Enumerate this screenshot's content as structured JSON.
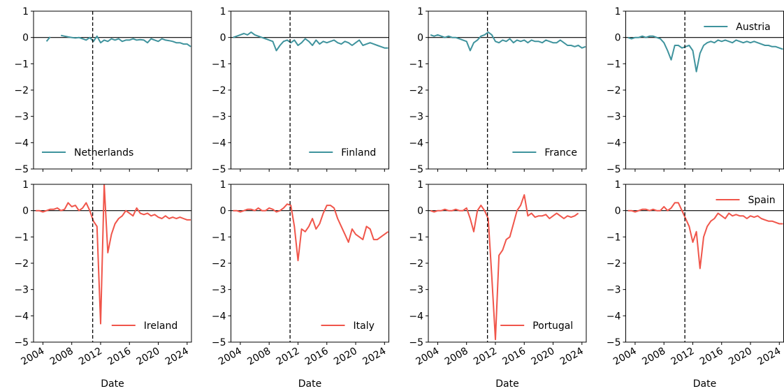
{
  "chart_data": [
    {
      "type": "line",
      "x": [
        2003,
        2003.5,
        2004,
        2004.5,
        2005,
        2005.5,
        2006,
        2006.5,
        2007,
        2007.5,
        2008,
        2008.5,
        2009,
        2009.5,
        2010,
        2010.5,
        2011,
        2011.5,
        2012,
        2012.5,
        2013,
        2013.5,
        2014,
        2014.5,
        2015,
        2015.5,
        2016,
        2016.5,
        2017,
        2017.5,
        2018,
        2018.5,
        2019,
        2019.5,
        2020,
        2020.5,
        2021,
        2021.5,
        2022,
        2022.5,
        2023,
        2023.5,
        2024,
        2024.5
      ],
      "series": [
        {
          "name": "Netherlands",
          "color": "#3f939d",
          "values": [
            null,
            null,
            null,
            -0.15,
            0.02,
            null,
            null,
            0.08,
            0.05,
            0.02,
            0.0,
            -0.02,
            0.0,
            -0.05,
            -0.1,
            0.0,
            -0.15,
            0.05,
            -0.2,
            -0.1,
            -0.15,
            -0.05,
            -0.1,
            -0.05,
            -0.15,
            -0.1,
            -0.1,
            -0.05,
            -0.1,
            -0.08,
            -0.1,
            -0.2,
            -0.05,
            -0.1,
            -0.15,
            -0.05,
            -0.1,
            -0.12,
            -0.15,
            -0.2,
            -0.2,
            -0.25,
            -0.25,
            -0.35
          ]
        }
      ],
      "xlim": [
        2002.7,
        2024.6
      ],
      "xticks": [
        2004,
        2008,
        2012,
        2016,
        2020,
        2024
      ],
      "ylim": [
        -5,
        1
      ],
      "yticks": [
        {
          "value": -5,
          "label": "−5"
        },
        {
          "value": -4,
          "label": "−4"
        },
        {
          "value": -3,
          "label": "−3"
        },
        {
          "value": -2,
          "label": "−2"
        },
        {
          "value": -1,
          "label": "−1"
        },
        0,
        1
      ],
      "hline": 0,
      "vline": 2010.9,
      "legend": "lower left"
    },
    {
      "type": "line",
      "x": [
        2003,
        2003.5,
        2004,
        2004.5,
        2005,
        2005.5,
        2006,
        2006.5,
        2007,
        2007.5,
        2008,
        2008.5,
        2009,
        2009.5,
        2010,
        2010.5,
        2011,
        2011.5,
        2012,
        2012.5,
        2013,
        2013.5,
        2014,
        2014.5,
        2015,
        2015.5,
        2016,
        2016.5,
        2017,
        2017.5,
        2018,
        2018.5,
        2019,
        2019.5,
        2020,
        2020.5,
        2021,
        2021.5,
        2022,
        2022.5,
        2023,
        2023.5,
        2024,
        2024.5
      ],
      "series": [
        {
          "name": "Finland",
          "color": "#3f939d",
          "values": [
            0.0,
            0.05,
            0.1,
            0.15,
            0.1,
            0.2,
            0.1,
            0.05,
            0.0,
            -0.05,
            -0.1,
            -0.15,
            -0.5,
            -0.3,
            -0.15,
            -0.1,
            -0.2,
            -0.1,
            -0.3,
            -0.2,
            -0.05,
            -0.15,
            -0.3,
            -0.1,
            -0.25,
            -0.15,
            -0.2,
            -0.15,
            -0.1,
            -0.2,
            -0.25,
            -0.15,
            -0.2,
            -0.3,
            -0.2,
            -0.1,
            -0.3,
            -0.25,
            -0.2,
            -0.25,
            -0.3,
            -0.35,
            -0.4,
            -0.4
          ]
        }
      ],
      "xlim": [
        2002.7,
        2024.6
      ],
      "xticks": [
        2004,
        2008,
        2012,
        2016,
        2020,
        2024
      ],
      "ylim": [
        -5,
        1
      ],
      "yticks": [
        {
          "value": -5,
          "label": "−5"
        },
        {
          "value": -4,
          "label": "−4"
        },
        {
          "value": -3,
          "label": "−3"
        },
        {
          "value": -2,
          "label": "−2"
        },
        {
          "value": -1,
          "label": "−1"
        },
        0,
        1
      ],
      "hline": 0,
      "vline": 2010.9,
      "legend": "lower right"
    },
    {
      "type": "line",
      "x": [
        2003,
        2003.5,
        2004,
        2004.5,
        2005,
        2005.5,
        2006,
        2006.5,
        2007,
        2007.5,
        2008,
        2008.5,
        2009,
        2009.5,
        2010,
        2010.5,
        2011,
        2011.5,
        2012,
        2012.5,
        2013,
        2013.5,
        2014,
        2014.5,
        2015,
        2015.5,
        2016,
        2016.5,
        2017,
        2017.5,
        2018,
        2018.5,
        2019,
        2019.5,
        2020,
        2020.5,
        2021,
        2021.5,
        2022,
        2022.5,
        2023,
        2023.5,
        2024,
        2024.5
      ],
      "series": [
        {
          "name": "France",
          "color": "#3f939d",
          "values": [
            0.1,
            0.05,
            0.1,
            0.05,
            0.0,
            0.05,
            0.0,
            0.0,
            -0.05,
            -0.1,
            -0.15,
            -0.5,
            -0.2,
            -0.1,
            0.05,
            0.1,
            0.2,
            0.1,
            -0.15,
            -0.2,
            -0.1,
            -0.15,
            -0.05,
            -0.2,
            -0.1,
            -0.15,
            -0.1,
            -0.2,
            -0.1,
            -0.15,
            -0.15,
            -0.2,
            -0.1,
            -0.15,
            -0.2,
            -0.2,
            -0.1,
            -0.2,
            -0.3,
            -0.3,
            -0.35,
            -0.3,
            -0.4,
            -0.35
          ]
        }
      ],
      "xlim": [
        2002.7,
        2024.6
      ],
      "xticks": [
        2004,
        2008,
        2012,
        2016,
        2020,
        2024
      ],
      "ylim": [
        -5,
        1
      ],
      "yticks": [
        {
          "value": -5,
          "label": "−5"
        },
        {
          "value": -4,
          "label": "−4"
        },
        {
          "value": -3,
          "label": "−3"
        },
        {
          "value": -2,
          "label": "−2"
        },
        {
          "value": -1,
          "label": "−1"
        },
        0,
        1
      ],
      "hline": 0,
      "vline": 2010.9,
      "legend": "lower right"
    },
    {
      "type": "line",
      "x": [
        2003,
        2003.5,
        2004,
        2004.5,
        2005,
        2005.5,
        2006,
        2006.5,
        2007,
        2007.5,
        2008,
        2008.5,
        2009,
        2009.5,
        2010,
        2010.5,
        2011,
        2011.5,
        2012,
        2012.5,
        2013,
        2013.5,
        2014,
        2014.5,
        2015,
        2015.5,
        2016,
        2016.5,
        2017,
        2017.5,
        2018,
        2018.5,
        2019,
        2019.5,
        2020,
        2020.5,
        2021,
        2021.5,
        2022,
        2022.5,
        2023,
        2023.5,
        2024,
        2024.5
      ],
      "series": [
        {
          "name": "Austria",
          "color": "#3f939d",
          "values": [
            0.0,
            -0.05,
            0.0,
            0.0,
            0.05,
            0.0,
            0.05,
            0.05,
            0.0,
            -0.05,
            -0.2,
            -0.5,
            -0.85,
            -0.3,
            -0.3,
            -0.4,
            -0.35,
            -0.3,
            -0.5,
            -1.3,
            -0.6,
            -0.3,
            -0.2,
            -0.15,
            -0.2,
            -0.1,
            -0.15,
            -0.1,
            -0.15,
            -0.2,
            -0.1,
            -0.15,
            -0.2,
            -0.15,
            -0.2,
            -0.15,
            -0.2,
            -0.25,
            -0.3,
            -0.3,
            -0.35,
            -0.35,
            -0.4,
            -0.45
          ]
        }
      ],
      "xlim": [
        2002.7,
        2024.6
      ],
      "xticks": [
        2004,
        2008,
        2012,
        2016,
        2020,
        2024
      ],
      "ylim": [
        -5,
        1
      ],
      "yticks": [
        {
          "value": -5,
          "label": "−5"
        },
        {
          "value": -4,
          "label": "−4"
        },
        {
          "value": -3,
          "label": "−3"
        },
        {
          "value": -2,
          "label": "−2"
        },
        {
          "value": -1,
          "label": "−1"
        },
        0,
        1
      ],
      "hline": 0,
      "vline": 2010.9,
      "legend": "upper right"
    },
    {
      "type": "line",
      "x": [
        2003,
        2003.5,
        2004,
        2004.5,
        2005,
        2005.5,
        2006,
        2006.5,
        2007,
        2007.5,
        2008,
        2008.5,
        2009,
        2009.5,
        2010,
        2010.5,
        2011,
        2011.5,
        2012,
        2012.5,
        2013,
        2013.5,
        2014,
        2014.5,
        2015,
        2015.5,
        2016,
        2016.5,
        2017,
        2017.5,
        2018,
        2018.5,
        2019,
        2019.5,
        2020,
        2020.5,
        2021,
        2021.5,
        2022,
        2022.5,
        2023,
        2023.5,
        2024,
        2024.5
      ],
      "series": [
        {
          "name": "Ireland",
          "color": "#f0554a",
          "values": [
            0.0,
            0.0,
            -0.05,
            0.0,
            0.05,
            0.05,
            0.1,
            0.0,
            0.05,
            0.3,
            0.15,
            0.2,
            0.0,
            0.1,
            0.3,
            0.0,
            -0.4,
            -0.6,
            -4.3,
            1.0,
            -1.6,
            -0.9,
            -0.5,
            -0.3,
            -0.2,
            0.0,
            -0.1,
            -0.2,
            0.1,
            -0.1,
            -0.15,
            -0.1,
            -0.2,
            -0.15,
            -0.25,
            -0.3,
            -0.2,
            -0.3,
            -0.25,
            -0.3,
            -0.25,
            -0.3,
            -0.35,
            -0.35
          ]
        }
      ],
      "xlim": [
        2002.7,
        2024.6
      ],
      "xticks": [
        2004,
        2008,
        2012,
        2016,
        2020,
        2024
      ],
      "ylim": [
        -5,
        1
      ],
      "yticks": [
        {
          "value": -5,
          "label": "−5"
        },
        {
          "value": -4,
          "label": "−4"
        },
        {
          "value": -3,
          "label": "−3"
        },
        {
          "value": -2,
          "label": "−2"
        },
        {
          "value": -1,
          "label": "−1"
        },
        0,
        1
      ],
      "hline": 0,
      "vline": 2010.9,
      "legend": "lower right",
      "xlabel": "Date"
    },
    {
      "type": "line",
      "x": [
        2003,
        2003.5,
        2004,
        2004.5,
        2005,
        2005.5,
        2006,
        2006.5,
        2007,
        2007.5,
        2008,
        2008.5,
        2009,
        2009.5,
        2010,
        2010.5,
        2011,
        2011.5,
        2012,
        2012.5,
        2013,
        2013.5,
        2014,
        2014.5,
        2015,
        2015.5,
        2016,
        2016.5,
        2017,
        2017.5,
        2018,
        2018.5,
        2019,
        2019.5,
        2020,
        2020.5,
        2021,
        2021.5,
        2022,
        2022.5,
        2023,
        2023.5,
        2024,
        2024.5
      ],
      "series": [
        {
          "name": "Italy",
          "color": "#f0554a",
          "values": [
            0.0,
            0.0,
            -0.05,
            0.0,
            0.05,
            0.05,
            0.0,
            0.1,
            0.0,
            0.0,
            0.1,
            0.05,
            -0.05,
            0.0,
            0.1,
            0.25,
            0.2,
            -0.6,
            -1.9,
            -0.7,
            -0.8,
            -0.6,
            -0.3,
            -0.7,
            -0.5,
            -0.1,
            0.2,
            0.2,
            0.1,
            -0.3,
            -0.6,
            -0.9,
            -1.2,
            -0.7,
            -0.9,
            -1.0,
            -1.1,
            -0.6,
            -0.7,
            -1.1,
            -1.1,
            -1.0,
            -0.9,
            -0.8
          ]
        }
      ],
      "xlim": [
        2002.7,
        2024.6
      ],
      "xticks": [
        2004,
        2008,
        2012,
        2016,
        2020,
        2024
      ],
      "ylim": [
        -5,
        1
      ],
      "yticks": [
        {
          "value": -5,
          "label": "−5"
        },
        {
          "value": -4,
          "label": "−4"
        },
        {
          "value": -3,
          "label": "−3"
        },
        {
          "value": -2,
          "label": "−2"
        },
        {
          "value": -1,
          "label": "−1"
        },
        0,
        1
      ],
      "hline": 0,
      "vline": 2010.9,
      "legend": "lower right",
      "xlabel": "Date"
    },
    {
      "type": "line",
      "x": [
        2003,
        2003.5,
        2004,
        2004.5,
        2005,
        2005.5,
        2006,
        2006.5,
        2007,
        2007.5,
        2008,
        2008.5,
        2009,
        2009.5,
        2010,
        2010.5,
        2011,
        2011.5,
        2012,
        2012.5,
        2013,
        2013.5,
        2014,
        2014.5,
        2015,
        2015.5,
        2016,
        2016.5,
        2017,
        2017.5,
        2018,
        2018.5,
        2019,
        2019.5,
        2020,
        2020.5,
        2021,
        2021.5,
        2022,
        2022.5,
        2023,
        2023.5,
        2024,
        2024.5
      ],
      "series": [
        {
          "name": "Portugal",
          "color": "#f0554a",
          "values": [
            0.0,
            -0.05,
            0.0,
            0.0,
            0.05,
            0.0,
            0.0,
            0.05,
            0.0,
            0.0,
            0.1,
            -0.3,
            -0.8,
            0.0,
            0.2,
            0.0,
            -0.3,
            -2.5,
            -4.9,
            -1.7,
            -1.5,
            -1.1,
            -1.0,
            -0.5,
            0.0,
            0.2,
            0.6,
            -0.2,
            -0.1,
            -0.25,
            -0.2,
            -0.2,
            -0.15,
            -0.3,
            -0.2,
            -0.1,
            -0.2,
            -0.3,
            -0.2,
            -0.25,
            -0.2,
            -0.1,
            null,
            null
          ]
        }
      ],
      "xlim": [
        2002.7,
        2024.6
      ],
      "xticks": [
        2004,
        2008,
        2012,
        2016,
        2020,
        2024
      ],
      "ylim": [
        -5,
        1
      ],
      "yticks": [
        {
          "value": -5,
          "label": "−5"
        },
        {
          "value": -4,
          "label": "−4"
        },
        {
          "value": -3,
          "label": "−3"
        },
        {
          "value": -2,
          "label": "−2"
        },
        {
          "value": -1,
          "label": "−1"
        },
        0,
        1
      ],
      "hline": 0,
      "vline": 2010.9,
      "legend": "lower right",
      "xlabel": "Date"
    },
    {
      "type": "line",
      "x": [
        2003,
        2003.5,
        2004,
        2004.5,
        2005,
        2005.5,
        2006,
        2006.5,
        2007,
        2007.5,
        2008,
        2008.5,
        2009,
        2009.5,
        2010,
        2010.5,
        2011,
        2011.5,
        2012,
        2012.5,
        2013,
        2013.5,
        2014,
        2014.5,
        2015,
        2015.5,
        2016,
        2016.5,
        2017,
        2017.5,
        2018,
        2018.5,
        2019,
        2019.5,
        2020,
        2020.5,
        2021,
        2021.5,
        2022,
        2022.5,
        2023,
        2023.5,
        2024,
        2024.5
      ],
      "series": [
        {
          "name": "Spain",
          "color": "#f0554a",
          "values": [
            0.0,
            0.0,
            -0.05,
            0.0,
            0.05,
            0.05,
            0.0,
            0.05,
            0.0,
            0.0,
            0.15,
            0.0,
            0.1,
            0.3,
            0.3,
            0.0,
            -0.3,
            -0.6,
            -1.2,
            -0.8,
            -2.2,
            -1.0,
            -0.6,
            -0.4,
            -0.3,
            -0.1,
            -0.2,
            -0.3,
            -0.1,
            -0.2,
            -0.15,
            -0.2,
            -0.2,
            -0.3,
            -0.2,
            -0.25,
            -0.2,
            -0.3,
            -0.35,
            -0.4,
            -0.4,
            -0.45,
            -0.5,
            -0.5
          ]
        }
      ],
      "xlim": [
        2002.7,
        2024.6
      ],
      "xticks": [
        2004,
        2008,
        2012,
        2016,
        2020,
        2024
      ],
      "ylim": [
        -5,
        1
      ],
      "yticks": [
        {
          "value": -5,
          "label": "−5"
        },
        {
          "value": -4,
          "label": "−4"
        },
        {
          "value": -3,
          "label": "−3"
        },
        {
          "value": -2,
          "label": "−2"
        },
        {
          "value": -1,
          "label": "−1"
        },
        0,
        1
      ],
      "hline": 0,
      "vline": 2010.9,
      "legend": "upper right",
      "xlabel": "Date"
    }
  ]
}
